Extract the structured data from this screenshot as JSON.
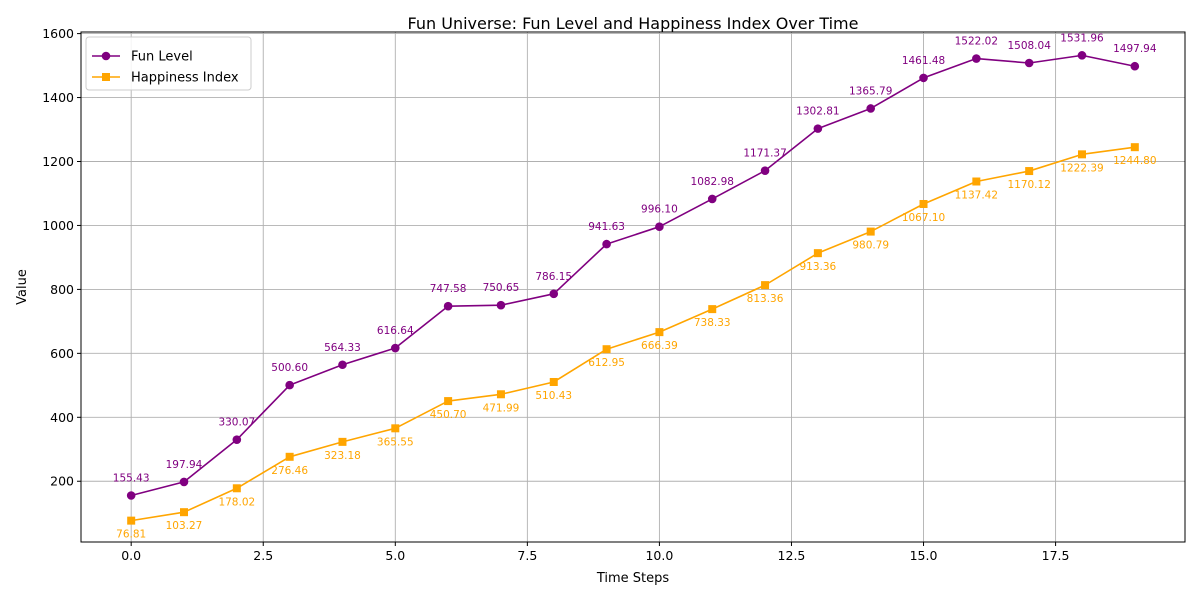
{
  "chart_data": {
    "type": "line",
    "title": "Fun Universe: Fun Level and Happiness Index Over Time",
    "xlabel": "Time Steps",
    "ylabel": "Value",
    "xlim": [
      -0.95,
      19.95
    ],
    "ylim": [
      10,
      1605
    ],
    "x_ticks": [
      0,
      2.5,
      5,
      7.5,
      10,
      12.5,
      15,
      17.5
    ],
    "x_tick_labels": [
      "0.0",
      "2.5",
      "5.0",
      "7.5",
      "10.0",
      "12.5",
      "15.0",
      "17.5"
    ],
    "y_ticks": [
      200,
      400,
      600,
      800,
      1000,
      1200,
      1400,
      1600
    ],
    "y_tick_labels": [
      "200",
      "400",
      "600",
      "800",
      "1000",
      "1200",
      "1400",
      "1600"
    ],
    "grid": true,
    "legend_position": "top-left",
    "x": [
      0,
      1,
      2,
      3,
      4,
      5,
      6,
      7,
      8,
      9,
      10,
      11,
      12,
      13,
      14,
      15,
      16,
      17,
      18,
      19
    ],
    "series": [
      {
        "name": "Fun Level",
        "color": "#800080",
        "marker": "circle",
        "label_position": "above",
        "values": [
          155.43,
          197.94,
          330.07,
          500.6,
          564.33,
          616.64,
          747.58,
          750.65,
          786.15,
          941.63,
          996.1,
          1082.98,
          1171.37,
          1302.81,
          1365.79,
          1461.48,
          1522.02,
          1508.04,
          1531.96,
          1497.94
        ],
        "labels": [
          "155.43",
          "197.94",
          "330.07",
          "500.60",
          "564.33",
          "616.64",
          "747.58",
          "750.65",
          "786.15",
          "941.63",
          "996.10",
          "1082.98",
          "1171.37",
          "1302.81",
          "1365.79",
          "1461.48",
          "1522.02",
          "1508.04",
          "1531.96",
          "1497.94"
        ]
      },
      {
        "name": "Happiness Index",
        "color": "#FFA500",
        "marker": "square",
        "label_position": "below",
        "values": [
          76.81,
          103.27,
          178.02,
          276.46,
          323.18,
          365.55,
          450.7,
          471.99,
          510.43,
          612.95,
          666.39,
          738.33,
          813.36,
          913.36,
          980.79,
          1067.1,
          1137.42,
          1170.12,
          1222.39,
          1244.8
        ],
        "labels": [
          "76.81",
          "103.27",
          "178.02",
          "276.46",
          "323.18",
          "365.55",
          "450.70",
          "471.99",
          "510.43",
          "612.95",
          "666.39",
          "738.33",
          "813.36",
          "913.36",
          "980.79",
          "1067.10",
          "1137.42",
          "1170.12",
          "1222.39",
          "1244.80"
        ]
      }
    ]
  }
}
